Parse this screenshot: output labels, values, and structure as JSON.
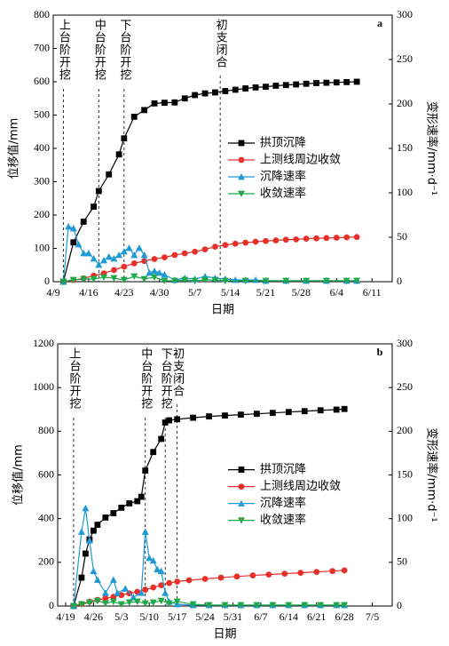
{
  "chart_data": [
    {
      "type": "line",
      "panel_label": "a",
      "xlabel": "日期",
      "ylabel": "位移值/mm",
      "y2label": "变形速率/mm·d⁻¹",
      "xlim": [
        "4/9",
        "6/15"
      ],
      "xticks": [
        "4/9",
        "4/16",
        "4/23",
        "4/30",
        "5/7",
        "5/14",
        "5/21",
        "5/28",
        "6/4",
        "6/11"
      ],
      "ylim": [
        0,
        800
      ],
      "yticks": [
        0,
        100,
        200,
        300,
        400,
        500,
        600,
        700,
        800
      ],
      "y2lim": [
        0,
        300
      ],
      "y2ticks": [
        0,
        50,
        100,
        150,
        200,
        250,
        300
      ],
      "legend_position": "right",
      "annotations": [
        {
          "text": "上台阶开挖",
          "x": "4/11"
        },
        {
          "text": "中台阶开挖",
          "x": "4/18"
        },
        {
          "text": "下台阶开挖",
          "x": "4/23"
        },
        {
          "text": "初支闭合",
          "x": "5/12"
        }
      ],
      "series": [
        {
          "name": "拱顶沉降",
          "color": "#000000",
          "marker": "square",
          "x": [
            "4/11",
            "4/13",
            "4/15",
            "4/17",
            "4/18",
            "4/20",
            "4/22",
            "4/23",
            "4/25",
            "4/27",
            "4/29",
            "5/1",
            "5/3",
            "5/5",
            "5/7",
            "5/9",
            "5/11",
            "5/13",
            "5/15",
            "5/17",
            "5/19",
            "5/21",
            "5/23",
            "5/25",
            "5/27",
            "5/29",
            "5/31",
            "6/2",
            "6/4",
            "6/6",
            "6/8"
          ],
          "values": [
            0,
            118,
            180,
            225,
            272,
            322,
            382,
            430,
            495,
            515,
            535,
            537,
            538,
            550,
            560,
            565,
            568,
            572,
            576,
            580,
            583,
            585,
            588,
            590,
            592,
            594,
            596,
            597,
            598,
            599,
            600
          ]
        },
        {
          "name": "上测线周边收敛",
          "color": "#e8302a",
          "marker": "circle",
          "x": [
            "4/11",
            "4/13",
            "4/15",
            "4/17",
            "4/19",
            "4/21",
            "4/23",
            "4/25",
            "4/27",
            "4/29",
            "5/1",
            "5/3",
            "5/5",
            "5/7",
            "5/9",
            "5/11",
            "5/13",
            "5/15",
            "5/17",
            "5/19",
            "5/21",
            "5/23",
            "5/25",
            "5/27",
            "5/29",
            "5/31",
            "6/2",
            "6/4",
            "6/6",
            "6/8"
          ],
          "values": [
            0,
            5,
            10,
            18,
            25,
            35,
            45,
            55,
            62,
            68,
            73,
            80,
            85,
            90,
            97,
            105,
            110,
            114,
            117,
            120,
            122,
            124,
            126,
            127,
            129,
            130,
            131,
            132,
            133,
            134
          ]
        },
        {
          "name": "沉降速率",
          "color": "#1f9ad6",
          "marker": "triangle-up",
          "axis": "y2",
          "x": [
            "4/11",
            "4/12",
            "4/13",
            "4/14",
            "4/15",
            "4/16",
            "4/17",
            "4/18",
            "4/19",
            "4/20",
            "4/21",
            "4/22",
            "4/23",
            "4/24",
            "4/25",
            "4/26",
            "4/27",
            "4/28",
            "4/29",
            "4/30",
            "5/1",
            "5/3",
            "5/5",
            "5/7",
            "5/9",
            "5/11",
            "5/13",
            "5/15",
            "5/17",
            "5/19",
            "5/21",
            "5/25",
            "5/29",
            "6/2",
            "6/6",
            "6/8"
          ],
          "values": [
            0,
            62,
            60,
            42,
            32,
            32,
            26,
            19,
            24,
            28,
            26,
            30,
            34,
            38,
            30,
            38,
            30,
            10,
            12,
            10,
            8,
            2,
            4,
            3,
            6,
            4,
            3,
            2,
            2,
            2,
            1,
            1,
            1,
            1,
            1,
            1
          ]
        },
        {
          "name": "收敛速率",
          "color": "#1fa84a",
          "marker": "triangle-down",
          "axis": "y2",
          "x": [
            "4/11",
            "4/13",
            "4/15",
            "4/17",
            "4/19",
            "4/21",
            "4/23",
            "4/25",
            "4/27",
            "4/29",
            "5/1",
            "5/3",
            "5/5",
            "5/7",
            "5/9",
            "5/11",
            "5/13",
            "5/17",
            "5/21",
            "5/25",
            "5/29",
            "6/2",
            "6/6",
            "6/8"
          ],
          "values": [
            0,
            2,
            3,
            3,
            5,
            4,
            2,
            6,
            3,
            5,
            1,
            1,
            2,
            1,
            2,
            2,
            1,
            1,
            1,
            1,
            1,
            1,
            1,
            1
          ]
        }
      ]
    },
    {
      "type": "line",
      "panel_label": "b",
      "xlabel": "日期",
      "ylabel": "位移值/mm",
      "y2label": "变形速率/mm·d⁻¹",
      "xlim": [
        "4/17",
        "7/10"
      ],
      "xticks": [
        "4/19",
        "4/26",
        "5/3",
        "5/10",
        "5/17",
        "5/24",
        "5/31",
        "6/7",
        "6/14",
        "6/21",
        "6/28",
        "7/5"
      ],
      "ylim": [
        0,
        1200
      ],
      "yticks": [
        0,
        200,
        400,
        600,
        800,
        1000,
        1200
      ],
      "y2lim": [
        0,
        300
      ],
      "y2ticks": [
        0,
        50,
        100,
        150,
        200,
        250,
        300
      ],
      "legend_position": "right",
      "annotations": [
        {
          "text": "上台阶开挖",
          "x": "4/21"
        },
        {
          "text": "中台阶开挖",
          "x": "5/9"
        },
        {
          "text": "下台阶开挖",
          "x": "5/14"
        },
        {
          "text": "初支闭合",
          "x": "5/17"
        }
      ],
      "series": [
        {
          "name": "拱顶沉降",
          "color": "#000000",
          "marker": "square",
          "x": [
            "4/21",
            "4/23",
            "4/24",
            "4/25",
            "4/26",
            "4/27",
            "4/29",
            "5/1",
            "5/3",
            "5/5",
            "5/7",
            "5/8",
            "5/9",
            "5/11",
            "5/13",
            "5/14",
            "5/15",
            "5/17",
            "5/21",
            "5/25",
            "5/29",
            "6/2",
            "6/6",
            "6/10",
            "6/14",
            "6/18",
            "6/22",
            "6/26",
            "6/28"
          ],
          "values": [
            0,
            130,
            240,
            305,
            345,
            372,
            405,
            425,
            450,
            470,
            480,
            500,
            620,
            705,
            765,
            840,
            850,
            855,
            862,
            868,
            872,
            876,
            880,
            884,
            888,
            892,
            896,
            899,
            902
          ]
        },
        {
          "name": "上测线周边收敛",
          "color": "#e8302a",
          "marker": "circle",
          "x": [
            "4/21",
            "4/23",
            "4/25",
            "4/27",
            "4/29",
            "5/1",
            "5/3",
            "5/5",
            "5/7",
            "5/9",
            "5/11",
            "5/13",
            "5/15",
            "5/17",
            "5/20",
            "5/24",
            "5/28",
            "6/1",
            "6/5",
            "6/9",
            "6/13",
            "6/17",
            "6/21",
            "6/25",
            "6/28"
          ],
          "values": [
            0,
            10,
            20,
            28,
            35,
            42,
            50,
            58,
            65,
            75,
            85,
            95,
            105,
            112,
            118,
            124,
            130,
            135,
            140,
            144,
            148,
            152,
            156,
            160,
            163
          ]
        },
        {
          "name": "沉降速率",
          "color": "#1f9ad6",
          "marker": "triangle-up",
          "axis": "y2",
          "x": [
            "4/21",
            "4/23",
            "4/24",
            "4/25",
            "4/26",
            "4/27",
            "4/29",
            "5/1",
            "5/2",
            "5/4",
            "5/6",
            "5/8",
            "5/9",
            "5/10",
            "5/11",
            "5/12",
            "5/13",
            "5/14",
            "5/15",
            "5/17",
            "5/21",
            "5/25",
            "5/29",
            "6/2",
            "6/6",
            "6/10",
            "6/14",
            "6/18",
            "6/22",
            "6/26",
            "6/28"
          ],
          "values": [
            0,
            85,
            112,
            75,
            40,
            30,
            15,
            30,
            15,
            20,
            10,
            15,
            85,
            55,
            52,
            42,
            40,
            15,
            5,
            2,
            1,
            1,
            1,
            1,
            1,
            1,
            1,
            1,
            1,
            1,
            1
          ]
        },
        {
          "name": "收敛速率",
          "color": "#1fa84a",
          "marker": "triangle-down",
          "axis": "y2",
          "x": [
            "4/21",
            "4/23",
            "4/25",
            "4/27",
            "4/29",
            "5/1",
            "5/3",
            "5/5",
            "5/7",
            "5/9",
            "5/11",
            "5/13",
            "5/15",
            "5/17",
            "5/21",
            "5/25",
            "5/29",
            "6/2",
            "6/6",
            "6/10",
            "6/14",
            "6/18",
            "6/22",
            "6/26",
            "6/28"
          ],
          "values": [
            0,
            2,
            4,
            6,
            3,
            5,
            2,
            4,
            5,
            3,
            4,
            6,
            3,
            5,
            2,
            1,
            1,
            1,
            1,
            1,
            1,
            1,
            1,
            1,
            1
          ]
        }
      ]
    }
  ]
}
